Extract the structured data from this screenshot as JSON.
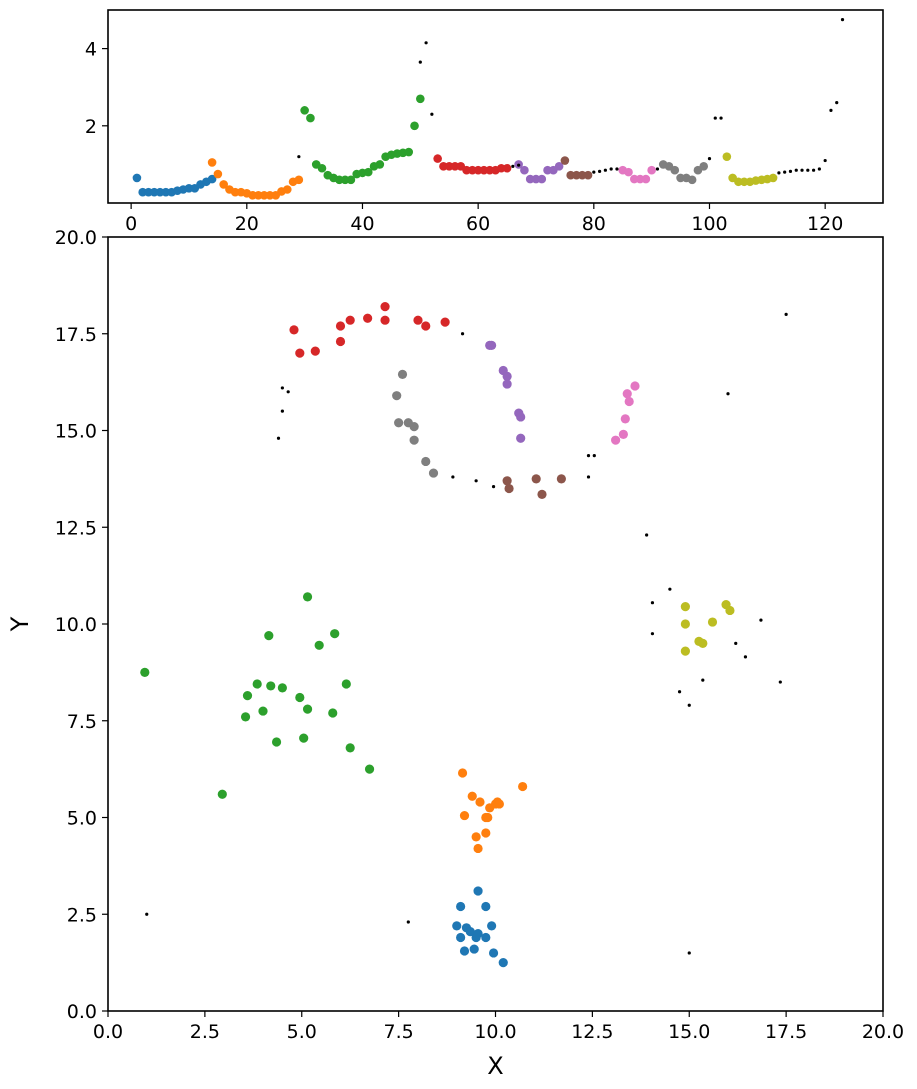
{
  "chart_data": [
    {
      "type": "scatter",
      "title": "",
      "xlabel": "",
      "ylabel": "",
      "xlim": [
        -4,
        130
      ],
      "ylim": [
        0,
        5
      ],
      "grid": false,
      "xticks": [
        "0",
        "20",
        "40",
        "60",
        "80",
        "100",
        "120"
      ],
      "yticks": [
        "2",
        "4"
      ],
      "series": [
        {
          "color": "#1f77b4",
          "points": [
            [
              1,
              0.65
            ],
            [
              2,
              0.28
            ],
            [
              3,
              0.28
            ],
            [
              4,
              0.28
            ],
            [
              5,
              0.28
            ],
            [
              6,
              0.28
            ],
            [
              7,
              0.28
            ],
            [
              8,
              0.32
            ],
            [
              9,
              0.35
            ],
            [
              10,
              0.38
            ],
            [
              11,
              0.38
            ],
            [
              12,
              0.48
            ],
            [
              13,
              0.55
            ],
            [
              14,
              0.62
            ]
          ]
        },
        {
          "color": "#ff7f0e",
          "points": [
            [
              14,
              1.05
            ],
            [
              15,
              0.75
            ],
            [
              16,
              0.48
            ],
            [
              17,
              0.35
            ],
            [
              18,
              0.28
            ],
            [
              19,
              0.28
            ],
            [
              20,
              0.25
            ],
            [
              21,
              0.2
            ],
            [
              22,
              0.2
            ],
            [
              23,
              0.2
            ],
            [
              24,
              0.2
            ],
            [
              25,
              0.2
            ],
            [
              26,
              0.3
            ],
            [
              27,
              0.35
            ],
            [
              28,
              0.55
            ],
            [
              29,
              0.6
            ]
          ]
        },
        {
          "color": "#2ca02c",
          "points": [
            [
              30,
              2.4
            ],
            [
              31,
              2.2
            ],
            [
              32,
              1.0
            ],
            [
              33,
              0.9
            ],
            [
              34,
              0.72
            ],
            [
              35,
              0.65
            ],
            [
              36,
              0.6
            ],
            [
              37,
              0.6
            ],
            [
              38,
              0.6
            ],
            [
              39,
              0.75
            ],
            [
              40,
              0.78
            ],
            [
              41,
              0.8
            ],
            [
              42,
              0.95
            ],
            [
              43,
              1.0
            ],
            [
              44,
              1.2
            ],
            [
              45,
              1.25
            ],
            [
              46,
              1.28
            ],
            [
              47,
              1.3
            ],
            [
              48,
              1.32
            ],
            [
              49,
              2.0
            ],
            [
              50,
              2.7
            ]
          ]
        },
        {
          "color": "#d62728",
          "points": [
            [
              53,
              1.15
            ],
            [
              54,
              0.95
            ],
            [
              55,
              0.95
            ],
            [
              56,
              0.95
            ],
            [
              57,
              0.95
            ],
            [
              58,
              0.85
            ],
            [
              59,
              0.85
            ],
            [
              60,
              0.85
            ],
            [
              61,
              0.85
            ],
            [
              62,
              0.85
            ],
            [
              63,
              0.85
            ],
            [
              64,
              0.9
            ],
            [
              65,
              0.9
            ]
          ]
        },
        {
          "color": "#9467bd",
          "points": [
            [
              67,
              1.0
            ],
            [
              68,
              0.85
            ],
            [
              69,
              0.62
            ],
            [
              70,
              0.62
            ],
            [
              71,
              0.62
            ],
            [
              72,
              0.85
            ],
            [
              73,
              0.85
            ],
            [
              74,
              0.95
            ]
          ]
        },
        {
          "color": "#8c564b",
          "points": [
            [
              75,
              1.1
            ],
            [
              76,
              0.72
            ],
            [
              77,
              0.72
            ],
            [
              78,
              0.72
            ],
            [
              79,
              0.72
            ]
          ]
        },
        {
          "color": "#e377c2",
          "points": [
            [
              85,
              0.85
            ],
            [
              86,
              0.8
            ],
            [
              87,
              0.62
            ],
            [
              88,
              0.62
            ],
            [
              89,
              0.62
            ],
            [
              90,
              0.85
            ]
          ]
        },
        {
          "color": "#7f7f7f",
          "points": [
            [
              92,
              1.0
            ],
            [
              93,
              0.95
            ],
            [
              94,
              0.85
            ],
            [
              95,
              0.65
            ],
            [
              96,
              0.65
            ],
            [
              97,
              0.6
            ],
            [
              98,
              0.85
            ],
            [
              99,
              0.95
            ]
          ]
        },
        {
          "color": "#bcbd22",
          "points": [
            [
              103,
              1.2
            ],
            [
              104,
              0.65
            ],
            [
              105,
              0.55
            ],
            [
              106,
              0.55
            ],
            [
              107,
              0.55
            ],
            [
              108,
              0.58
            ],
            [
              109,
              0.6
            ],
            [
              110,
              0.62
            ],
            [
              111,
              0.65
            ]
          ]
        },
        {
          "color": "#000000",
          "points": [
            [
              29,
              1.2
            ],
            [
              50,
              3.65
            ],
            [
              51,
              4.15
            ],
            [
              52,
              2.3
            ],
            [
              66,
              0.95
            ],
            [
              67,
              0.98
            ],
            [
              80,
              0.8
            ],
            [
              81,
              0.82
            ],
            [
              82,
              0.85
            ],
            [
              83,
              0.88
            ],
            [
              84,
              0.88
            ],
            [
              91,
              0.88
            ],
            [
              100,
              1.15
            ],
            [
              101,
              2.2
            ],
            [
              102,
              2.2
            ],
            [
              112,
              0.78
            ],
            [
              113,
              0.8
            ],
            [
              114,
              0.82
            ],
            [
              115,
              0.85
            ],
            [
              116,
              0.85
            ],
            [
              117,
              0.85
            ],
            [
              118,
              0.85
            ],
            [
              119,
              0.88
            ],
            [
              120,
              1.1
            ],
            [
              121,
              2.4
            ],
            [
              122,
              2.6
            ],
            [
              123,
              4.75
            ]
          ]
        }
      ]
    },
    {
      "type": "scatter",
      "title": "",
      "xlabel": "X",
      "ylabel": "Y",
      "xlim": [
        0,
        20
      ],
      "ylim": [
        0,
        20
      ],
      "grid": false,
      "xticks": [
        "0.0",
        "2.5",
        "5.0",
        "7.5",
        "10.0",
        "12.5",
        "15.0",
        "17.5",
        "20.0"
      ],
      "yticks": [
        "0.0",
        "2.5",
        "5.0",
        "7.5",
        "10.0",
        "12.5",
        "15.0",
        "17.5",
        "20.0"
      ],
      "series": [
        {
          "color": "#1f77b4",
          "points": [
            [
              9.0,
              2.2
            ],
            [
              9.1,
              1.9
            ],
            [
              9.1,
              2.7
            ],
            [
              9.2,
              1.55
            ],
            [
              9.25,
              2.15
            ],
            [
              9.35,
              2.05
            ],
            [
              9.45,
              1.6
            ],
            [
              9.5,
              1.9
            ],
            [
              9.55,
              3.1
            ],
            [
              9.55,
              2.0
            ],
            [
              9.75,
              1.9
            ],
            [
              9.75,
              2.7
            ],
            [
              9.9,
              2.2
            ],
            [
              9.95,
              1.5
            ],
            [
              10.2,
              1.25
            ]
          ]
        },
        {
          "color": "#ff7f0e",
          "points": [
            [
              9.15,
              6.15
            ],
            [
              9.2,
              5.05
            ],
            [
              9.4,
              5.55
            ],
            [
              9.5,
              4.5
            ],
            [
              9.55,
              4.2
            ],
            [
              9.6,
              5.4
            ],
            [
              9.75,
              5.0
            ],
            [
              9.75,
              4.6
            ],
            [
              9.8,
              5.0
            ],
            [
              9.85,
              5.25
            ],
            [
              10.0,
              5.35
            ],
            [
              10.05,
              5.4
            ],
            [
              10.1,
              5.35
            ],
            [
              10.7,
              5.8
            ]
          ]
        },
        {
          "color": "#2ca02c",
          "points": [
            [
              0.95,
              8.75
            ],
            [
              2.95,
              5.6
            ],
            [
              3.55,
              7.6
            ],
            [
              3.6,
              8.15
            ],
            [
              3.85,
              8.45
            ],
            [
              4.0,
              7.75
            ],
            [
              4.15,
              9.7
            ],
            [
              4.2,
              8.4
            ],
            [
              4.35,
              6.95
            ],
            [
              4.5,
              8.35
            ],
            [
              4.95,
              8.1
            ],
            [
              5.05,
              7.05
            ],
            [
              5.15,
              10.7
            ],
            [
              5.15,
              7.8
            ],
            [
              5.45,
              9.45
            ],
            [
              5.8,
              7.7
            ],
            [
              5.85,
              9.75
            ],
            [
              6.15,
              8.45
            ],
            [
              6.25,
              6.8
            ],
            [
              6.75,
              6.25
            ]
          ]
        },
        {
          "color": "#d62728",
          "points": [
            [
              4.8,
              17.6
            ],
            [
              4.95,
              17.0
            ],
            [
              5.35,
              17.05
            ],
            [
              6.0,
              17.7
            ],
            [
              6.0,
              17.3
            ],
            [
              6.25,
              17.85
            ],
            [
              6.7,
              17.9
            ],
            [
              7.15,
              18.2
            ],
            [
              7.15,
              17.85
            ],
            [
              8.0,
              17.85
            ],
            [
              8.2,
              17.7
            ],
            [
              8.7,
              17.8
            ]
          ]
        },
        {
          "color": "#9467bd",
          "points": [
            [
              9.85,
              17.2
            ],
            [
              9.9,
              17.2
            ],
            [
              10.2,
              16.55
            ],
            [
              10.3,
              16.4
            ],
            [
              10.3,
              16.2
            ],
            [
              10.6,
              15.45
            ],
            [
              10.65,
              15.35
            ],
            [
              10.65,
              14.8
            ]
          ]
        },
        {
          "color": "#8c564b",
          "points": [
            [
              10.3,
              13.7
            ],
            [
              10.35,
              13.5
            ],
            [
              11.05,
              13.75
            ],
            [
              11.2,
              13.35
            ],
            [
              11.7,
              13.75
            ]
          ]
        },
        {
          "color": "#e377c2",
          "points": [
            [
              13.1,
              14.75
            ],
            [
              13.3,
              14.9
            ],
            [
              13.35,
              15.3
            ],
            [
              13.4,
              15.95
            ],
            [
              13.45,
              15.75
            ],
            [
              13.6,
              16.15
            ]
          ]
        },
        {
          "color": "#7f7f7f",
          "points": [
            [
              7.45,
              15.9
            ],
            [
              7.5,
              15.2
            ],
            [
              7.6,
              16.45
            ],
            [
              7.75,
              15.2
            ],
            [
              7.9,
              14.75
            ],
            [
              7.9,
              15.1
            ],
            [
              8.2,
              14.2
            ],
            [
              8.4,
              13.9
            ]
          ]
        },
        {
          "color": "#bcbd22",
          "points": [
            [
              14.9,
              10.45
            ],
            [
              14.9,
              10.0
            ],
            [
              14.9,
              9.3
            ],
            [
              15.25,
              9.55
            ],
            [
              15.35,
              9.5
            ],
            [
              15.6,
              10.05
            ],
            [
              15.95,
              10.5
            ],
            [
              16.05,
              10.35
            ]
          ]
        },
        {
          "color": "#000000",
          "points": [
            [
              1.0,
              2.5
            ],
            [
              4.4,
              14.8
            ],
            [
              4.5,
              16.1
            ],
            [
              4.5,
              15.5
            ],
            [
              4.65,
              16.0
            ],
            [
              7.75,
              2.3
            ],
            [
              8.9,
              13.8
            ],
            [
              9.15,
              17.5
            ],
            [
              9.5,
              13.7
            ],
            [
              9.95,
              13.55
            ],
            [
              12.4,
              13.8
            ],
            [
              12.4,
              14.35
            ],
            [
              12.55,
              14.35
            ],
            [
              13.9,
              12.3
            ],
            [
              14.05,
              9.75
            ],
            [
              14.05,
              10.55
            ],
            [
              14.5,
              10.9
            ],
            [
              14.75,
              8.25
            ],
            [
              15.0,
              7.9
            ],
            [
              15.0,
              1.5
            ],
            [
              15.35,
              8.55
            ],
            [
              16.0,
              15.95
            ],
            [
              16.2,
              9.5
            ],
            [
              16.45,
              9.15
            ],
            [
              16.85,
              10.1
            ],
            [
              17.35,
              8.5
            ],
            [
              17.5,
              18.0
            ]
          ]
        }
      ]
    }
  ]
}
